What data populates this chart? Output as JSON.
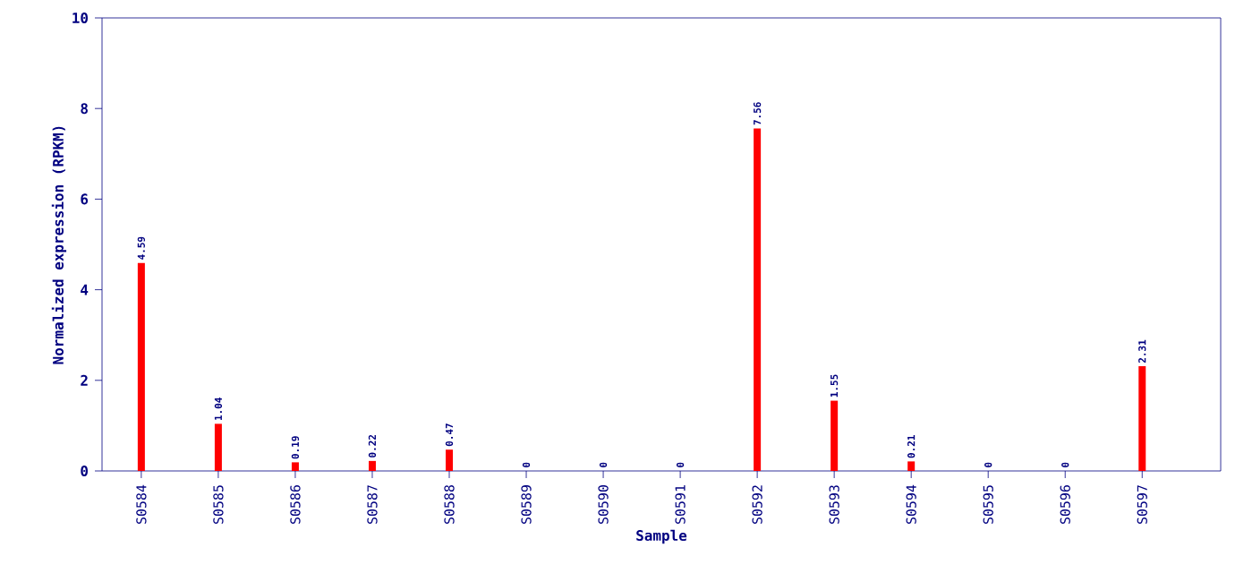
{
  "chart_data": {
    "type": "bar",
    "xlabel": "Sample",
    "ylabel": "Normalized expression (RPKM)",
    "categories": [
      "S0584",
      "S0585",
      "S0586",
      "S0587",
      "S0588",
      "S0589",
      "S0590",
      "S0591",
      "S0592",
      "S0593",
      "S0594",
      "S0595",
      "S0596",
      "S0597"
    ],
    "values": [
      4.59,
      1.04,
      0.19,
      0.22,
      0.47,
      0,
      0,
      0,
      7.56,
      1.55,
      0.21,
      0,
      0,
      2.31
    ],
    "color": "#ff0000",
    "ylim": [
      0,
      10
    ],
    "yticks": [
      0,
      2,
      4,
      6,
      8,
      10
    ],
    "data_labels": true
  }
}
